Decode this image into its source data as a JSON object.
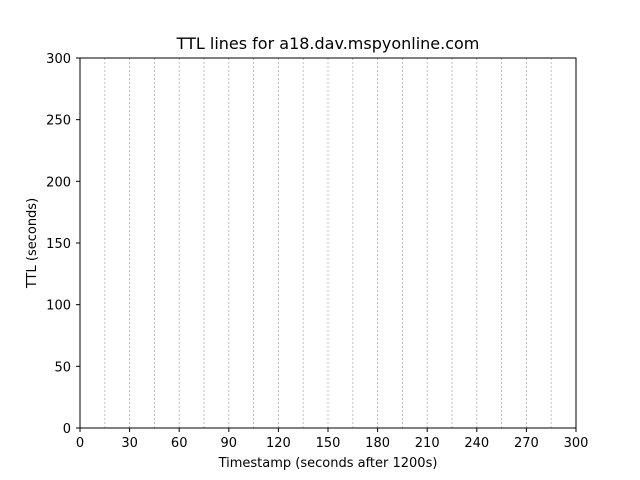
{
  "chart_data": {
    "type": "line",
    "title": "TTL lines for a18.dav.mspyonline.com",
    "xlabel": "Timestamp (seconds after 1200s)",
    "ylabel": "TTL (seconds)",
    "xlim": [
      0,
      300
    ],
    "ylim": [
      0,
      300
    ],
    "x_ticks": [
      0,
      30,
      60,
      90,
      120,
      150,
      180,
      210,
      240,
      270,
      300
    ],
    "y_ticks": [
      0,
      50,
      100,
      150,
      200,
      250,
      300
    ],
    "x_minor_ticks": [
      15,
      45,
      75,
      105,
      135,
      165,
      195,
      225,
      255,
      285
    ],
    "vertical_grid": "dashed at every 15 s",
    "horizontal_grid": false,
    "series": [],
    "colors": {
      "grid": "#b0b0b0",
      "axes": "#000000"
    }
  }
}
